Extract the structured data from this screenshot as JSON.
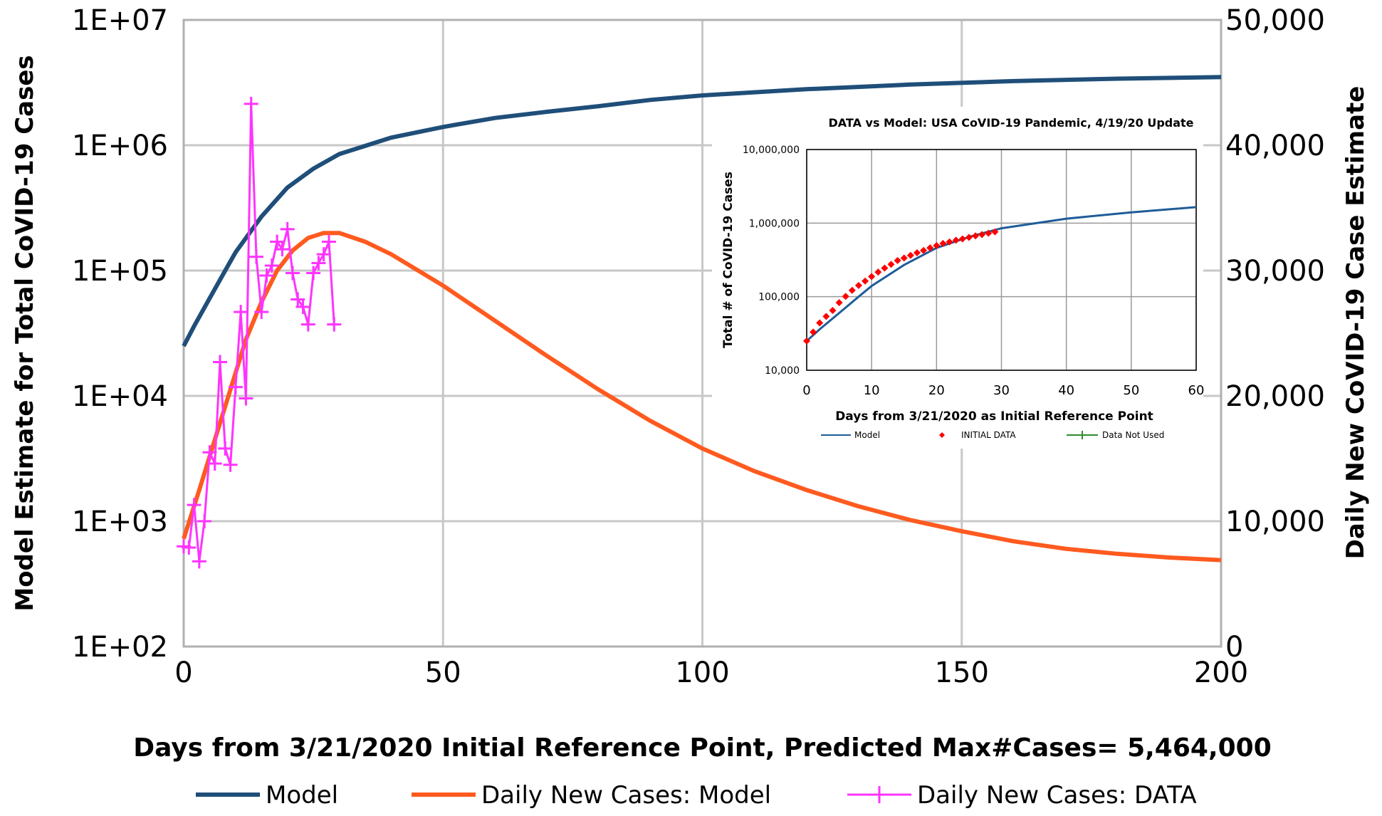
{
  "chart_data": [
    {
      "type": "line",
      "xlabel": "Days from 3/21/2020 Initial Reference Point, Predicted Max#Cases= 5,464,000",
      "ylabel_left": "Model Estimate for Total CoVID-19 Cases",
      "ylabel_right": "Daily New CoVID-19 Case Estimate",
      "xlim": [
        0,
        200
      ],
      "ylim_left": [
        100,
        10000000
      ],
      "yscale_left": "log",
      "ylim_right": [
        0,
        50000
      ],
      "grid": true,
      "x_ticks": [
        "0",
        "50",
        "100",
        "150",
        "200"
      ],
      "y_ticks_left": [
        "1E+02",
        "1E+03",
        "1E+04",
        "1E+05",
        "1E+06",
        "1E+07"
      ],
      "y_ticks_right": [
        "0",
        "10,000",
        "20,000",
        "30,000",
        "40,000",
        "50,000"
      ],
      "legend_position": "bottom",
      "series": [
        {
          "name": "Model",
          "axis": "left",
          "color": "#1f4e79",
          "x": [
            0,
            2,
            5,
            8,
            10,
            15,
            20,
            25,
            30,
            40,
            50,
            60,
            70,
            80,
            90,
            100,
            120,
            140,
            160,
            180,
            200
          ],
          "y": [
            25000,
            36000,
            60000,
            100000,
            140000,
            270000,
            460000,
            650000,
            850000,
            1150000,
            1400000,
            1650000,
            1850000,
            2050000,
            2300000,
            2500000,
            2800000,
            3050000,
            3250000,
            3400000,
            3500000
          ]
        },
        {
          "name": "Daily New Cases: Model",
          "axis": "right",
          "color": "#ff5a1f",
          "x": [
            0,
            3,
            6,
            9,
            12,
            15,
            18,
            21,
            24,
            27,
            30,
            35,
            40,
            50,
            60,
            70,
            80,
            90,
            100,
            110,
            120,
            130,
            140,
            150,
            160,
            170,
            180,
            190,
            200
          ],
          "y": [
            8600,
            12500,
            16500,
            20500,
            24500,
            27500,
            30000,
            31600,
            32600,
            33000,
            33000,
            32300,
            31300,
            28800,
            26000,
            23200,
            20500,
            18000,
            15800,
            14000,
            12500,
            11200,
            10100,
            9200,
            8400,
            7800,
            7400,
            7100,
            6900
          ]
        },
        {
          "name": "Daily New Cases: DATA",
          "axis": "right",
          "color": "#ff33ff",
          "x": [
            0,
            1,
            2,
            3,
            4,
            5,
            6,
            7,
            8,
            9,
            10,
            11,
            12,
            13,
            14,
            15,
            16,
            17,
            18,
            19,
            20,
            21,
            22,
            23,
            24,
            25,
            26,
            27,
            28,
            29
          ],
          "y": [
            8000,
            7900,
            11300,
            6800,
            10000,
            15500,
            14600,
            22700,
            15800,
            14500,
            20700,
            26700,
            19800,
            43300,
            31100,
            26700,
            29600,
            30400,
            32300,
            31700,
            33300,
            29800,
            27700,
            27100,
            25700,
            29800,
            30600,
            31300,
            32300,
            25700
          ]
        }
      ]
    },
    {
      "type": "line",
      "title": "DATA vs Model: USA CoVID-19 Pandemic, 4/19/20 Update",
      "xlabel": "Days from 3/21/2020 as Initial Reference Point",
      "ylabel": "Total # of CoVID-19 Cases",
      "xlim": [
        0,
        60
      ],
      "ylim": [
        10000,
        10000000
      ],
      "yscale": "log",
      "grid": true,
      "x_ticks": [
        "0",
        "10",
        "20",
        "30",
        "40",
        "50",
        "60"
      ],
      "y_ticks": [
        "10,000",
        "100,000",
        "1,000,000",
        "10,000,000"
      ],
      "legend_position": "bottom",
      "series": [
        {
          "name": "Model",
          "color": "#1f5c99",
          "x": [
            0,
            2,
            5,
            8,
            10,
            15,
            20,
            25,
            30,
            40,
            50,
            60
          ],
          "y": [
            25000,
            36000,
            60000,
            100000,
            140000,
            270000,
            460000,
            650000,
            850000,
            1150000,
            1400000,
            1650000
          ]
        },
        {
          "name": "INITIAL DATA",
          "color": "#ff0000",
          "x": [
            0,
            1,
            2,
            3,
            4,
            5,
            6,
            7,
            8,
            9,
            10,
            11,
            12,
            13,
            14,
            15,
            16,
            17,
            18,
            19,
            20,
            21,
            22,
            23,
            24,
            25,
            26,
            27,
            28,
            29
          ],
          "y": [
            25000,
            33000,
            44000,
            54000,
            65000,
            83000,
            101000,
            122000,
            142000,
            163000,
            188000,
            216000,
            245000,
            275000,
            310000,
            335000,
            365000,
            395000,
            425000,
            460000,
            495000,
            530000,
            555000,
            585000,
            610000,
            640000,
            670000,
            700000,
            730000,
            760000
          ]
        },
        {
          "name": "Data Not Used",
          "color": "#2e8b2e",
          "x": [],
          "y": []
        }
      ]
    }
  ]
}
